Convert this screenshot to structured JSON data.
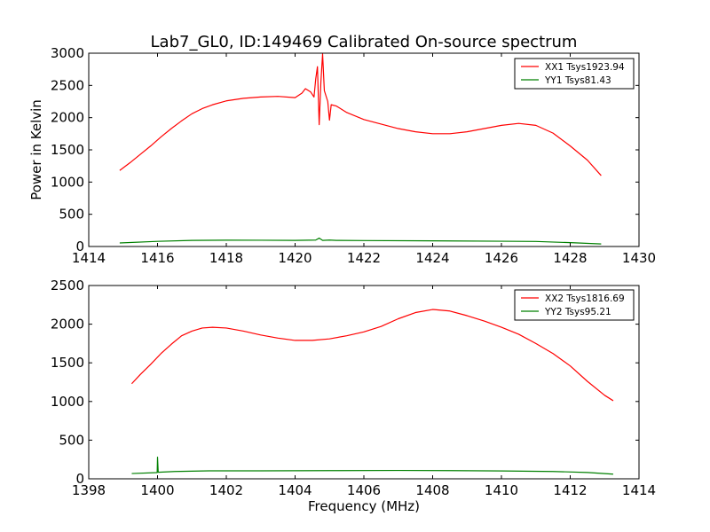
{
  "chart_data": [
    {
      "type": "line",
      "title": "Lab7_GL0, ID:149469 Calibrated On-source spectrum",
      "xlabel": "",
      "ylabel": "Power in Kelvin",
      "xlim": [
        1414,
        1430
      ],
      "ylim": [
        0,
        3000
      ],
      "xticks": [
        1414,
        1416,
        1418,
        1420,
        1422,
        1424,
        1426,
        1428,
        1430
      ],
      "yticks": [
        0,
        500,
        1000,
        1500,
        2000,
        2500,
        3000
      ],
      "legend_position": "top-right",
      "series": [
        {
          "name": "XX1 Tsys1923.94",
          "color": "#ff0000",
          "points": [
            [
              1414.9,
              1180
            ],
            [
              1415.2,
              1300
            ],
            [
              1415.5,
              1430
            ],
            [
              1415.8,
              1560
            ],
            [
              1416.1,
              1700
            ],
            [
              1416.4,
              1830
            ],
            [
              1416.7,
              1950
            ],
            [
              1417.0,
              2060
            ],
            [
              1417.3,
              2140
            ],
            [
              1417.6,
              2200
            ],
            [
              1418.0,
              2260
            ],
            [
              1418.5,
              2300
            ],
            [
              1419.0,
              2320
            ],
            [
              1419.5,
              2330
            ],
            [
              1420.0,
              2310
            ],
            [
              1420.2,
              2380
            ],
            [
              1420.3,
              2450
            ],
            [
              1420.45,
              2400
            ],
            [
              1420.55,
              2320
            ],
            [
              1420.6,
              2600
            ],
            [
              1420.65,
              2790
            ],
            [
              1420.7,
              1890
            ],
            [
              1420.75,
              2550
            ],
            [
              1420.8,
              2990
            ],
            [
              1420.85,
              2420
            ],
            [
              1420.95,
              2250
            ],
            [
              1421.0,
              1960
            ],
            [
              1421.05,
              2200
            ],
            [
              1421.2,
              2180
            ],
            [
              1421.5,
              2080
            ],
            [
              1422.0,
              1970
            ],
            [
              1422.5,
              1900
            ],
            [
              1423.0,
              1830
            ],
            [
              1423.5,
              1780
            ],
            [
              1424.0,
              1750
            ],
            [
              1424.5,
              1750
            ],
            [
              1425.0,
              1780
            ],
            [
              1425.5,
              1830
            ],
            [
              1426.0,
              1880
            ],
            [
              1426.5,
              1910
            ],
            [
              1427.0,
              1880
            ],
            [
              1427.5,
              1760
            ],
            [
              1428.0,
              1560
            ],
            [
              1428.5,
              1340
            ],
            [
              1428.9,
              1100
            ]
          ]
        },
        {
          "name": "YY1 Tsys81.43",
          "color": "#008000",
          "points": [
            [
              1414.9,
              55
            ],
            [
              1416.0,
              80
            ],
            [
              1417.0,
              95
            ],
            [
              1418.0,
              98
            ],
            [
              1419.0,
              97
            ],
            [
              1420.0,
              95
            ],
            [
              1420.6,
              100
            ],
            [
              1420.7,
              130
            ],
            [
              1420.8,
              95
            ],
            [
              1421.0,
              100
            ],
            [
              1421.2,
              95
            ],
            [
              1422.0,
              92
            ],
            [
              1424.0,
              88
            ],
            [
              1426.0,
              82
            ],
            [
              1427.0,
              78
            ],
            [
              1428.0,
              60
            ],
            [
              1428.9,
              40
            ]
          ]
        }
      ]
    },
    {
      "type": "line",
      "title": "",
      "xlabel": "Frequency (MHz)",
      "ylabel": "",
      "xlim": [
        1398,
        1414
      ],
      "ylim": [
        0,
        2500
      ],
      "xticks": [
        1398,
        1400,
        1402,
        1404,
        1406,
        1408,
        1410,
        1412,
        1414
      ],
      "yticks": [
        0,
        500,
        1000,
        1500,
        2000,
        2500
      ],
      "legend_position": "top-right",
      "series": [
        {
          "name": "XX2 Tsys1816.69",
          "color": "#ff0000",
          "points": [
            [
              1399.25,
              1230
            ],
            [
              1399.5,
              1350
            ],
            [
              1399.8,
              1480
            ],
            [
              1400.1,
              1620
            ],
            [
              1400.4,
              1740
            ],
            [
              1400.7,
              1850
            ],
            [
              1401.0,
              1910
            ],
            [
              1401.3,
              1950
            ],
            [
              1401.6,
              1960
            ],
            [
              1402.0,
              1950
            ],
            [
              1402.5,
              1910
            ],
            [
              1403.0,
              1860
            ],
            [
              1403.5,
              1820
            ],
            [
              1404.0,
              1790
            ],
            [
              1404.5,
              1790
            ],
            [
              1405.0,
              1810
            ],
            [
              1405.5,
              1850
            ],
            [
              1406.0,
              1900
            ],
            [
              1406.5,
              1970
            ],
            [
              1407.0,
              2070
            ],
            [
              1407.5,
              2150
            ],
            [
              1408.0,
              2190
            ],
            [
              1408.5,
              2170
            ],
            [
              1409.0,
              2110
            ],
            [
              1409.5,
              2040
            ],
            [
              1410.0,
              1960
            ],
            [
              1410.5,
              1870
            ],
            [
              1411.0,
              1750
            ],
            [
              1411.5,
              1620
            ],
            [
              1412.0,
              1460
            ],
            [
              1412.5,
              1260
            ],
            [
              1413.0,
              1080
            ],
            [
              1413.25,
              1010
            ]
          ]
        },
        {
          "name": "YY2 Tsys95.21",
          "color": "#008000",
          "points": [
            [
              1399.25,
              68
            ],
            [
              1399.99,
              80
            ],
            [
              1400.0,
              280
            ],
            [
              1400.02,
              85
            ],
            [
              1400.5,
              95
            ],
            [
              1401.5,
              103
            ],
            [
              1403.0,
              103
            ],
            [
              1405.0,
              106
            ],
            [
              1407.0,
              108
            ],
            [
              1408.5,
              106
            ],
            [
              1410.0,
              102
            ],
            [
              1411.5,
              95
            ],
            [
              1412.5,
              82
            ],
            [
              1413.25,
              60
            ]
          ]
        }
      ]
    }
  ]
}
